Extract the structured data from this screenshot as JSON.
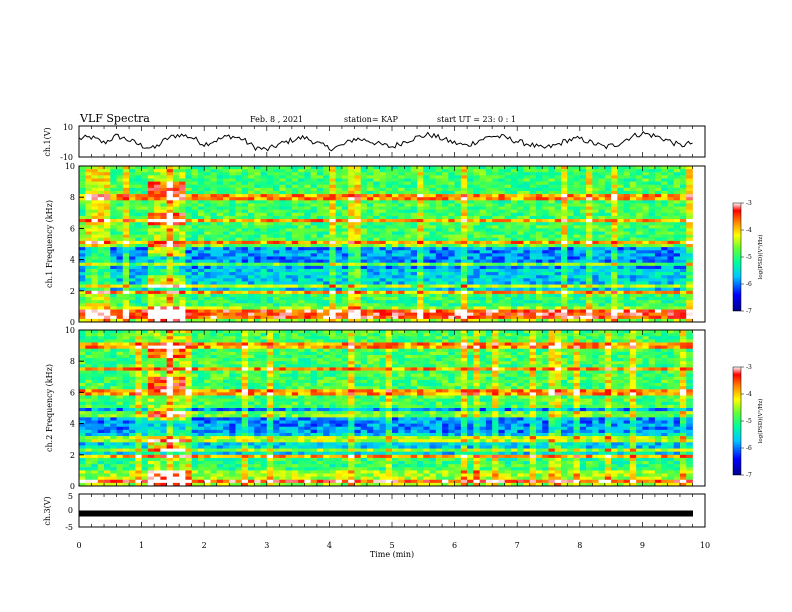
{
  "header": {
    "title": "VLF Spectra",
    "date": "Feb. 8 , 2021",
    "station": "station= KAP",
    "start": "start UT = 23: 0 : 1"
  },
  "chart_data": [
    {
      "type": "line",
      "panel": "ch1-waveform",
      "ylabel": "ch.1(V)",
      "ylim": [
        -10,
        10
      ],
      "yticks": [
        "10",
        "-10"
      ],
      "xlim": [
        0,
        10
      ],
      "samples_note": "",
      "values": [
        2,
        3,
        -1,
        4,
        1,
        -3,
        -5,
        2,
        5,
        3,
        -2,
        1,
        4,
        2,
        -4,
        -6,
        -2,
        1,
        3,
        -1,
        -5,
        -3,
        2,
        1,
        -2,
        -4,
        0,
        3,
        5,
        2,
        -1,
        -3,
        1,
        4,
        3,
        0,
        -2,
        -5,
        -3,
        1,
        2,
        -1,
        -4,
        -2,
        3,
        6,
        4,
        1,
        -3,
        -1
      ]
    },
    {
      "type": "heatmap",
      "panel": "ch1-spectrogram",
      "ylabel": "ch.1 Frequency (kHz)",
      "ylim": [
        0,
        10
      ],
      "yticks": [
        "0",
        "2",
        "4",
        "6",
        "8",
        "10"
      ],
      "xlim": [
        0,
        9.8
      ],
      "burst_interval_min": [
        1.1,
        1.7
      ],
      "strong_lines_khz": [
        0.3,
        0.6,
        1.9,
        2.3,
        3.7,
        5.0,
        6.5,
        8.0
      ],
      "colorbar": {
        "label": "log(PSD)(V²/Hz)",
        "range": [
          -7,
          -3
        ],
        "ticks": [
          "-3",
          "-4",
          "-5",
          "-6",
          "-7"
        ]
      }
    },
    {
      "type": "heatmap",
      "panel": "ch2-spectrogram",
      "ylabel": "ch.2 Frequency (kHz)",
      "ylim": [
        0,
        10
      ],
      "yticks": [
        "0",
        "2",
        "4",
        "6",
        "8",
        "10"
      ],
      "xlim": [
        0,
        9.8
      ],
      "burst_interval_min": [
        1.1,
        1.7
      ],
      "strong_lines_khz": [
        0.3,
        1.9,
        2.3,
        3.0,
        4.6,
        6.0,
        7.5,
        9.0
      ],
      "colorbar": {
        "label": "log(PSD)(V²/Hz)",
        "range": [
          -7,
          -3
        ],
        "ticks": [
          "-3",
          "-4",
          "-5",
          "-6",
          "-7"
        ]
      }
    },
    {
      "type": "line",
      "panel": "ch3-waveform",
      "ylabel": "ch.3(V)",
      "ylim": [
        -5,
        5
      ],
      "yticks": [
        "5",
        "0",
        "-5"
      ],
      "xlim": [
        0,
        10
      ],
      "level": -1
    }
  ],
  "xaxis": {
    "label": "Time (min)",
    "ticks": [
      "0",
      "1",
      "2",
      "3",
      "4",
      "5",
      "6",
      "7",
      "8",
      "9",
      "10"
    ]
  }
}
